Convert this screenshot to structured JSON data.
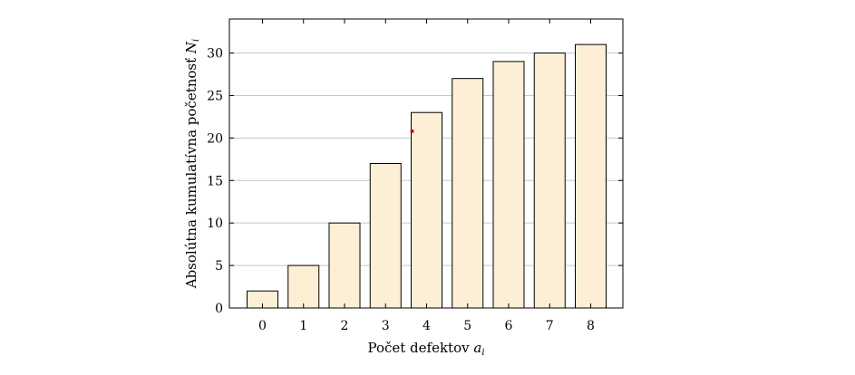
{
  "chart_data": {
    "type": "bar",
    "categories": [
      "0",
      "1",
      "2",
      "3",
      "4",
      "5",
      "6",
      "7",
      "8"
    ],
    "values": [
      2,
      5,
      10,
      17,
      23,
      27,
      29,
      30,
      31
    ],
    "title": "",
    "xlabel": {
      "text": "Počet defektov ",
      "var": "a",
      "sub": "i"
    },
    "ylabel": {
      "text": "Absolútna kumulatívna početnosť ",
      "var": "N",
      "sub": "i"
    },
    "ylim": [
      0,
      34
    ],
    "yticks": [
      0,
      5,
      10,
      15,
      20,
      25,
      30
    ],
    "grid": "horizontal",
    "bar_fill": "#fdefd6",
    "bar_stroke": "#000000",
    "grid_color": "#c8c8c8",
    "annotation_point": {
      "x": 4,
      "y": 20.8,
      "color": "#cc0000"
    }
  }
}
